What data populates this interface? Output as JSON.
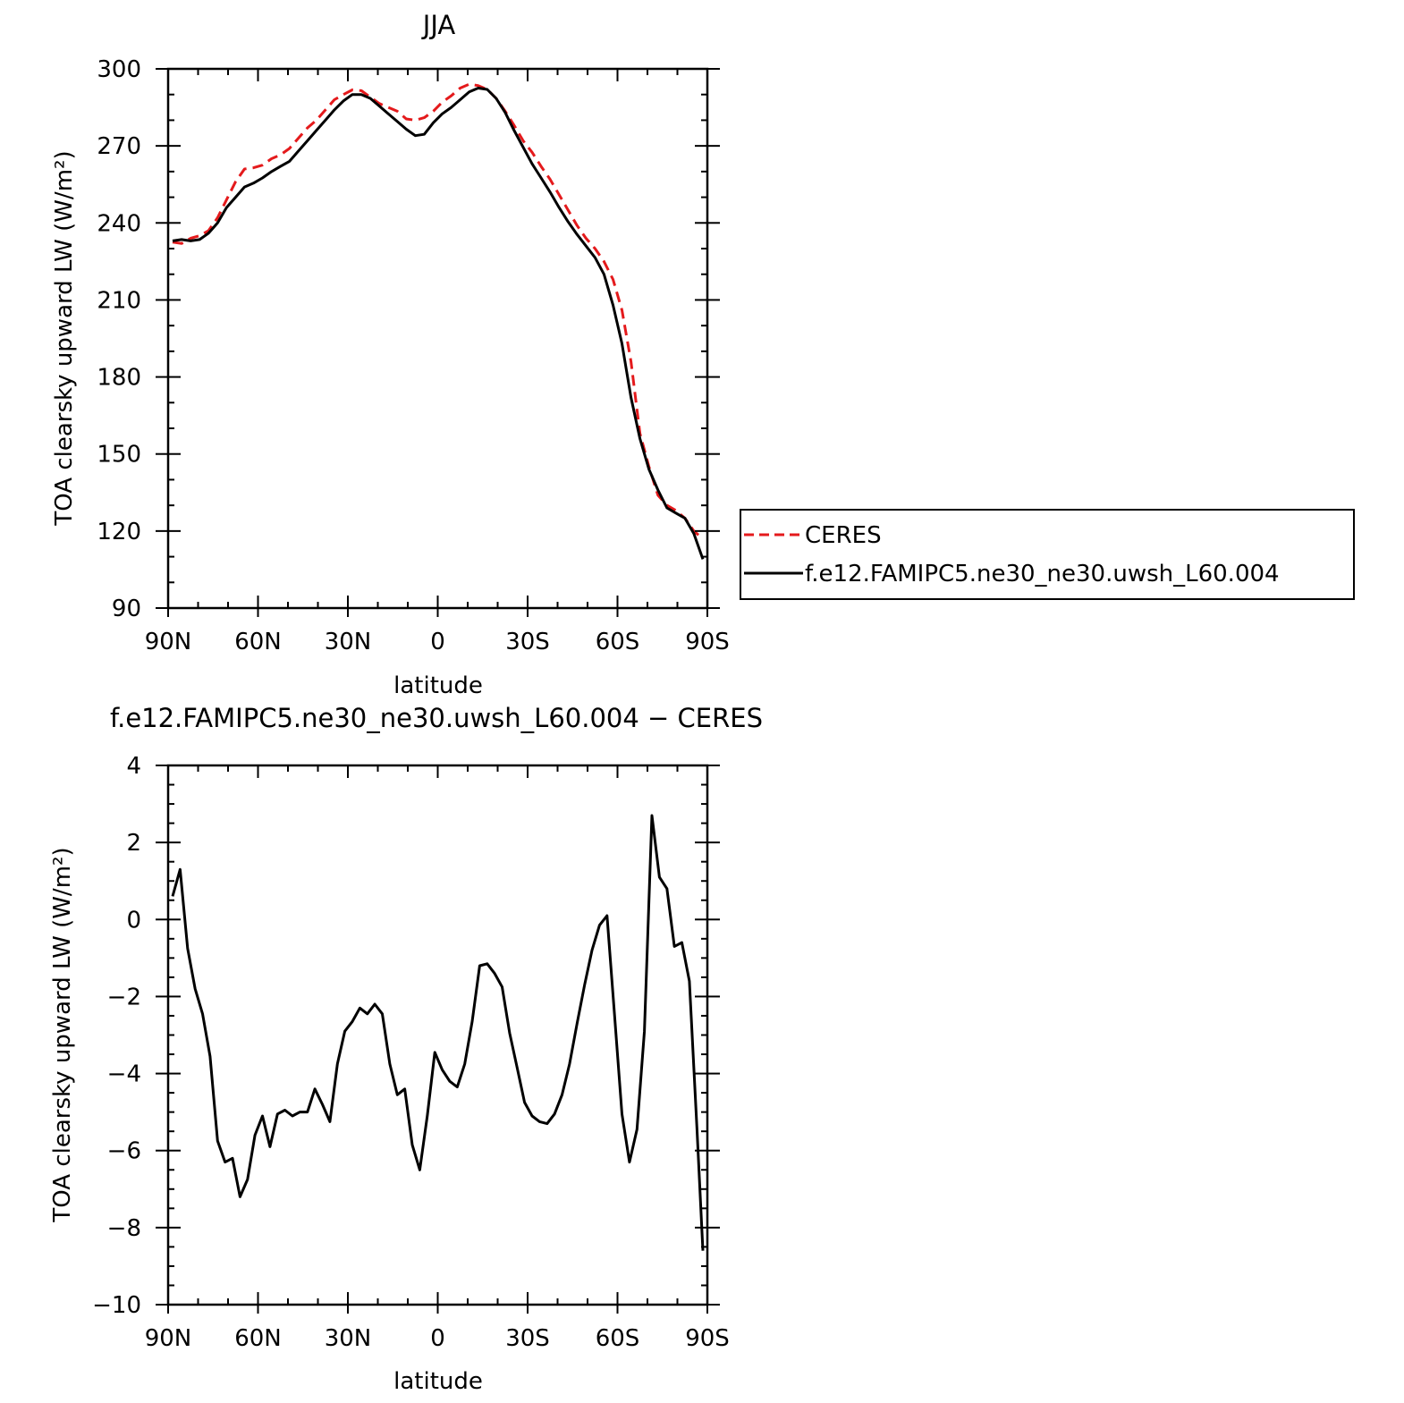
{
  "chart_data": [
    {
      "type": "line",
      "title": "JJA",
      "xlabel": "latitude",
      "ylabel": "TOA clearsky upward LW (W/m²)",
      "xlim": [
        90,
        -90
      ],
      "ylim": [
        90,
        300
      ],
      "x_ticks": [
        90,
        60,
        30,
        0,
        -30,
        -60,
        -90
      ],
      "x_tick_labels": [
        "90N",
        "60N",
        "30N",
        "0",
        "30S",
        "60S",
        "90S"
      ],
      "y_ticks": [
        90,
        120,
        150,
        180,
        210,
        240,
        270,
        300
      ],
      "y_tick_labels": [
        "90",
        "120",
        "150",
        "180",
        "210",
        "240",
        "270",
        "300"
      ],
      "legend": "outside-right",
      "series": [
        {
          "name": "CERES",
          "color": "#e41a1c",
          "style": "dashed",
          "x": [
            88.5,
            85.5,
            82.5,
            79.5,
            76.5,
            73.5,
            70.5,
            67.5,
            64.5,
            61.5,
            58.5,
            55.5,
            52.5,
            49.5,
            46.5,
            43.5,
            40.5,
            37.5,
            34.5,
            31.5,
            28.5,
            25.5,
            22.5,
            19.5,
            16.5,
            13.5,
            10.5,
            7.5,
            4.5,
            1.5,
            -1.5,
            -4.5,
            -7.5,
            -10.5,
            -13.5,
            -16.5,
            -19.5,
            -22.5,
            -25.5,
            -28.5,
            -31.5,
            -34.5,
            -37.5,
            -40.5,
            -43.5,
            -46.5,
            -49.5,
            -52.5,
            -55.5,
            -58.5,
            -61.5,
            -64.5,
            -67.5,
            -70.5,
            -73.5,
            -76.5,
            -79.5,
            -82.5,
            -85.5,
            -88.5
          ],
          "values": [
            232.5,
            232,
            234,
            235,
            237,
            242,
            249,
            256,
            261,
            261.5,
            262.5,
            265,
            266.5,
            269,
            273,
            277,
            280,
            284,
            288,
            290,
            291.8,
            291.5,
            289,
            286.5,
            285,
            283.5,
            280.5,
            280,
            281,
            283.5,
            287,
            289.5,
            292.5,
            294,
            293.5,
            292,
            288.5,
            283.5,
            278,
            272,
            267.5,
            262,
            257,
            251,
            245,
            239,
            234,
            230,
            225,
            218,
            206,
            186,
            158,
            145,
            134,
            130,
            128,
            125,
            120,
            117
          ]
        },
        {
          "name": "f.e12.FAMIPC5.ne30_ne30.uwsh_L60.004",
          "color": "#000000",
          "style": "solid",
          "x": [
            88.5,
            85.5,
            82.5,
            79.5,
            76.5,
            73.5,
            70.5,
            67.5,
            64.5,
            61.5,
            58.5,
            55.5,
            52.5,
            49.5,
            46.5,
            43.5,
            40.5,
            37.5,
            34.5,
            31.5,
            28.5,
            25.5,
            22.5,
            19.5,
            16.5,
            13.5,
            10.5,
            7.5,
            4.5,
            1.5,
            -1.5,
            -4.5,
            -7.5,
            -10.5,
            -13.5,
            -16.5,
            -19.5,
            -22.5,
            -25.5,
            -28.5,
            -31.5,
            -34.5,
            -37.5,
            -40.5,
            -43.5,
            -46.5,
            -49.5,
            -52.5,
            -55.5,
            -58.5,
            -61.5,
            -64.5,
            -67.5,
            -70.5,
            -73.5,
            -76.5,
            -79.5,
            -82.5,
            -85.5,
            -88.5
          ],
          "values": [
            233,
            233.5,
            233,
            233.5,
            236,
            240,
            246,
            250,
            254,
            255.5,
            257.5,
            260,
            262,
            264,
            268,
            272,
            276,
            280,
            284,
            287.5,
            290,
            290,
            288.5,
            285.5,
            282.5,
            279.5,
            276.5,
            274,
            274.5,
            279,
            282.5,
            285,
            288,
            291,
            292.5,
            292,
            288.5,
            283,
            276,
            269.5,
            263,
            257.5,
            252,
            246,
            240.5,
            235.5,
            231,
            226.5,
            220,
            208,
            193,
            172,
            156,
            144,
            136,
            129,
            127,
            125,
            119,
            109
          ]
        }
      ]
    },
    {
      "type": "line",
      "title": "f.e12.FAMIPC5.ne30_ne30.uwsh_L60.004 − CERES",
      "xlabel": "latitude",
      "ylabel": "TOA clearsky upward LW (W/m²)",
      "xlim": [
        90,
        -90
      ],
      "ylim": [
        -10,
        4
      ],
      "x_ticks": [
        90,
        60,
        30,
        0,
        -30,
        -60,
        -90
      ],
      "x_tick_labels": [
        "90N",
        "60N",
        "30N",
        "0",
        "30S",
        "60S",
        "90S"
      ],
      "y_ticks": [
        4,
        2,
        0,
        -2,
        -4,
        -6,
        -8,
        -10
      ],
      "y_tick_labels": [
        "4",
        "2",
        "0",
        "−2",
        "−4",
        "−6",
        "−8",
        "−10"
      ],
      "series": [
        {
          "color": "#000000",
          "style": "solid",
          "x": [
            88.5,
            86,
            83.5,
            81,
            78.5,
            76,
            73.5,
            71,
            68.5,
            66,
            63.5,
            61,
            58.5,
            56,
            53.5,
            51,
            48.5,
            46,
            43.5,
            41,
            38.5,
            36,
            33.5,
            31,
            28.5,
            26,
            23.5,
            21,
            18.5,
            16,
            13.5,
            11,
            8.5,
            6,
            3.5,
            1,
            -1.5,
            -4,
            -6.5,
            -9,
            -11.5,
            -14,
            -16.5,
            -19,
            -21.5,
            -24,
            -26.5,
            -29,
            -31.5,
            -34,
            -36.5,
            -39,
            -41.5,
            -44,
            -46.5,
            -49,
            -51.5,
            -54,
            -56.5,
            -59,
            -61.5,
            -64,
            -66.5,
            -69,
            -71.5,
            -74,
            -76.5,
            -79,
            -81.5,
            -84,
            -86.5,
            -88.5
          ],
          "values": [
            0.6,
            1.3,
            -0.75,
            -1.8,
            -2.45,
            -3.55,
            -5.75,
            -6.3,
            -6.2,
            -7.2,
            -6.75,
            -5.6,
            -5.1,
            -5.9,
            -5.05,
            -4.95,
            -5.1,
            -5.0,
            -5.0,
            -4.4,
            -4.8,
            -5.25,
            -3.75,
            -2.9,
            -2.65,
            -2.3,
            -2.45,
            -2.2,
            -2.45,
            -3.75,
            -4.55,
            -4.4,
            -5.85,
            -6.5,
            -5.1,
            -3.45,
            -3.9,
            -4.2,
            -4.35,
            -3.75,
            -2.65,
            -1.2,
            -1.15,
            -1.4,
            -1.75,
            -2.95,
            -3.85,
            -4.75,
            -5.1,
            -5.25,
            -5.3,
            -5.05,
            -4.55,
            -3.75,
            -2.7,
            -1.7,
            -0.8,
            -0.15,
            0.1,
            -2.45,
            -5.05,
            -6.3,
            -5.45,
            -2.9,
            2.7,
            1.1,
            0.8,
            -0.7,
            -0.6,
            -1.6,
            -5.4,
            -8.6
          ]
        }
      ]
    }
  ],
  "page_background": "#ffffff",
  "axis_color": "#000000"
}
